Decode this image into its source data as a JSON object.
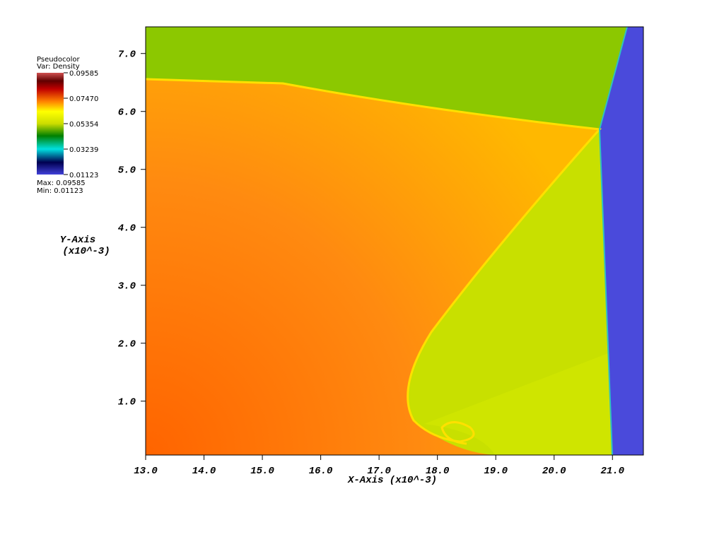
{
  "chart_data": {
    "type": "pseudocolor",
    "legend_title": "Pseudocolor",
    "legend_variable": "Var: Density",
    "legend_max": "Max: 0.09585",
    "legend_min": "Min: 0.01123",
    "colorbar_ticks": [
      0.09585,
      {
        "value": 0.0747,
        "label": "0.07470"
      },
      0.05354,
      0.03239,
      0.01123
    ],
    "colorbar_lim": [
      0.01123,
      0.09585
    ],
    "x_label": "X-Axis (x10^-3)",
    "y_label": "Y-Axis",
    "y_label_units": "(x10^-3)",
    "xlim": [
      13.0,
      21.53
    ],
    "ylim": [
      0.07,
      7.46
    ],
    "xticks": [
      {
        "value": 13,
        "label": "13.0"
      },
      {
        "value": 14,
        "label": "14.0"
      },
      {
        "value": 15,
        "label": "15.0"
      },
      {
        "value": 16,
        "label": "16.0"
      },
      {
        "value": 17,
        "label": "17.0"
      },
      {
        "value": 18,
        "label": "18.0"
      },
      {
        "value": 19,
        "label": "19.0"
      },
      {
        "value": 20,
        "label": "20.0"
      },
      {
        "value": 21,
        "label": "21.0"
      }
    ],
    "yticks": [
      {
        "value": 1,
        "label": "1.0"
      },
      {
        "value": 2,
        "label": "2.0"
      },
      {
        "value": 3,
        "label": "3.0"
      },
      {
        "value": 4,
        "label": "4.0"
      },
      {
        "value": 5,
        "label": "5.0"
      },
      {
        "value": 6,
        "label": "6.0"
      },
      {
        "value": 7,
        "label": "7.0"
      }
    ]
  }
}
